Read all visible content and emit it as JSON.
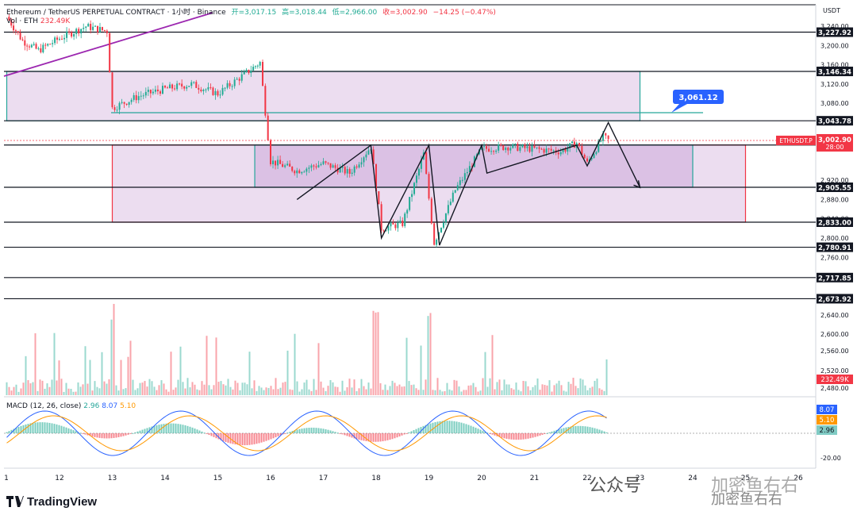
{
  "header": {
    "symbol": "Ethereum / TetherUS PERPETUAL CONTRACT · 1小时 · Binance",
    "open_label": "开=3,017.15",
    "high_label": "高=3,018.44",
    "low_label": "低=2,966.00",
    "close_label": "收=3,002.90",
    "change": "−14.25 (−0.47%)",
    "vol_label": "Vol · ETH",
    "vol_value": "232.49K"
  },
  "macd_label": {
    "name": "MACD (12, 26, close)",
    "hist": "2.96",
    "macd": "8.07",
    "signal": "5.10"
  },
  "currency": "USDT",
  "logo_text": "TradingView",
  "watermarks": {
    "a": "公众号",
    "b": "加密鱼右右",
    "c": "加密鱼右右"
  },
  "colors": {
    "up": "#22ab94",
    "down": "#f23645",
    "zone_fill": "#c89fd4",
    "zone_border_teal": "#26a69a",
    "zone_border_red": "#f23645",
    "macd_line": "#2962ff",
    "signal_line": "#ff9800",
    "trendline": "#9c27b0"
  },
  "chart_data": {
    "type": "candlestick",
    "instrument": "ETHUSDT.P",
    "timeframe": "1h",
    "ylim": [
      2640,
      3280
    ],
    "x_ticks": [
      "1",
      "12",
      "13",
      "14",
      "15",
      "16",
      "17",
      "18",
      "19",
      "20",
      "21",
      "22",
      "23",
      "24",
      "25",
      "26"
    ],
    "y_ticks": [
      3240,
      3200,
      3160,
      3120,
      3080,
      2920,
      2880,
      2840,
      2800,
      2760,
      2640
    ],
    "vol_axis_ticks": [
      2600,
      2560,
      2520,
      2480
    ],
    "macd_axis_ticks": [
      "-20.00"
    ],
    "horizontal_levels": [
      {
        "value": 3227.92,
        "label": "3,227.92"
      },
      {
        "value": 3146.34,
        "label": "3,146.34"
      },
      {
        "value": 3043.78,
        "label": "3,043.78"
      },
      {
        "value": 2993.42,
        "label": "2,993.42"
      },
      {
        "value": 2905.55,
        "label": "2,905.55"
      },
      {
        "value": 2833.0,
        "label": "2,833.00"
      },
      {
        "value": 2780.91,
        "label": "2,780.91"
      },
      {
        "value": 2717.85,
        "label": "2,717.85"
      },
      {
        "value": 2673.92,
        "label": "2,673.92"
      }
    ],
    "zones": [
      {
        "top": 3146.34,
        "bottom": 3043.78,
        "x_from": "11",
        "x_to": "23",
        "border": "teal"
      },
      {
        "top": 2993.42,
        "bottom": 2833.0,
        "x_from": "13",
        "x_to": "25",
        "border": "red"
      },
      {
        "top": 2993.42,
        "bottom": 2905.55,
        "x_from": "15.7",
        "x_to": "24",
        "border": "teal"
      }
    ],
    "callout": {
      "value": 3061.12,
      "label": "3,061.12"
    },
    "price_tag": {
      "symbol": "ETHUSDT.P",
      "price": "3,002.90",
      "countdown": "28:00"
    },
    "volume_tag": "232.49K",
    "macd_tags": {
      "macd": "8.07",
      "signal": "5.10",
      "hist": "2.96"
    },
    "close_path": [
      {
        "x": "11.0",
        "y": 3260
      },
      {
        "x": "11.3",
        "y": 3210
      },
      {
        "x": "11.6",
        "y": 3190
      },
      {
        "x": "12.0",
        "y": 3215
      },
      {
        "x": "12.5",
        "y": 3240
      },
      {
        "x": "12.9",
        "y": 3230
      },
      {
        "x": "13.0",
        "y": 3070
      },
      {
        "x": "13.5",
        "y": 3095
      },
      {
        "x": "14.0",
        "y": 3110
      },
      {
        "x": "14.5",
        "y": 3120
      },
      {
        "x": "15.0",
        "y": 3100
      },
      {
        "x": "15.5",
        "y": 3140
      },
      {
        "x": "15.8",
        "y": 3165
      },
      {
        "x": "16.0",
        "y": 2960
      },
      {
        "x": "16.5",
        "y": 2940
      },
      {
        "x": "17.0",
        "y": 2955
      },
      {
        "x": "17.5",
        "y": 2935
      },
      {
        "x": "17.9",
        "y": 2990
      },
      {
        "x": "18.1",
        "y": 2820
      },
      {
        "x": "18.5",
        "y": 2830
      },
      {
        "x": "18.9",
        "y": 2975
      },
      {
        "x": "19.1",
        "y": 2790
      },
      {
        "x": "19.5",
        "y": 2900
      },
      {
        "x": "20.0",
        "y": 2985
      },
      {
        "x": "20.5",
        "y": 2990
      },
      {
        "x": "21.0",
        "y": 2985
      },
      {
        "x": "21.5",
        "y": 2980
      },
      {
        "x": "21.8",
        "y": 2998
      },
      {
        "x": "22.0",
        "y": 2955
      },
      {
        "x": "22.3",
        "y": 3010
      },
      {
        "x": "22.4",
        "y": 3003
      }
    ],
    "drawn_path": [
      {
        "x": "16.5",
        "y": 2880
      },
      {
        "x": "17.9",
        "y": 2993
      },
      {
        "x": "18.1",
        "y": 2800
      },
      {
        "x": "19.0",
        "y": 2993
      },
      {
        "x": "19.2",
        "y": 2785
      },
      {
        "x": "20.0",
        "y": 2993
      },
      {
        "x": "20.1",
        "y": 2935
      },
      {
        "x": "21.8",
        "y": 2993
      },
      {
        "x": "22.0",
        "y": 2950
      },
      {
        "x": "22.4",
        "y": 3040
      },
      {
        "x": "23.0",
        "y": 2905
      }
    ]
  }
}
